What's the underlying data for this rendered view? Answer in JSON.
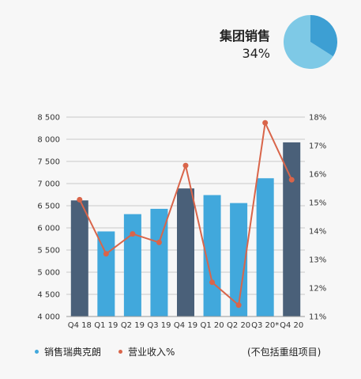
{
  "pie": {
    "label": "集团销售",
    "value_text": "34%",
    "share": 0.34,
    "colors": {
      "slice": "#3d9fd3",
      "rest": "#7ec9e6"
    }
  },
  "legend": {
    "bar_label": "销售瑞典克朗",
    "line_label": "营业收入%",
    "note": "(不包括重组项目)"
  },
  "chart_data": {
    "type": "bar",
    "categories": [
      "Q4 18",
      "Q1 19",
      "Q2 19",
      "Q3 19",
      "Q4 19",
      "Q1 20",
      "Q2 20",
      "Q3 20*",
      "Q4 20"
    ],
    "series": [
      {
        "name": "销售瑞典克朗",
        "type": "bar",
        "axis": "left",
        "values": [
          6620,
          5920,
          6310,
          6430,
          6890,
          6740,
          6560,
          7120,
          7930
        ],
        "highlight": [
          true,
          false,
          false,
          false,
          true,
          false,
          false,
          false,
          true
        ]
      },
      {
        "name": "营业收入%",
        "type": "line",
        "axis": "right",
        "values": [
          15.1,
          13.2,
          13.9,
          13.6,
          16.3,
          12.2,
          11.4,
          17.8,
          15.8
        ]
      }
    ],
    "y_left": {
      "ylim": [
        4000,
        8500
      ],
      "ticks": [
        "4 000",
        "4 500",
        "5 000",
        "5 500",
        "6 000",
        "6 500",
        "7 000",
        "7 500",
        "8 000",
        "8 500"
      ]
    },
    "y_right": {
      "ylim": [
        11,
        18
      ],
      "ticks": [
        "11%",
        "12%",
        "13%",
        "14%",
        "15%",
        "16%",
        "17%",
        "18%"
      ]
    },
    "grid": true,
    "colors": {
      "bar": "#41a8dc",
      "bar_highlight": "#4a6079",
      "line": "#d9654a",
      "grid": "#c9c9c9"
    }
  }
}
